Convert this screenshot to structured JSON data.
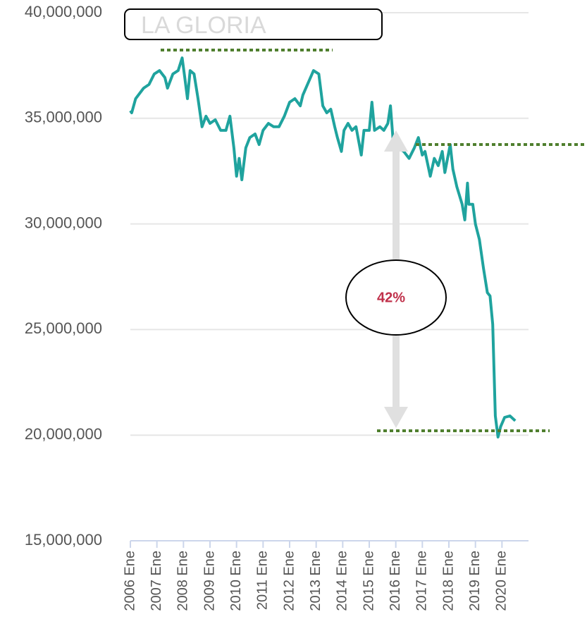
{
  "chart_data": {
    "type": "line",
    "title": "LA GLORIA",
    "annotation": "42%",
    "x": [
      2006.0,
      2006.05,
      2006.2,
      2006.5,
      2006.7,
      2006.9,
      2007.1,
      2007.3,
      2007.4,
      2007.6,
      2007.8,
      2007.95,
      2008.05,
      2008.15,
      2008.25,
      2008.4,
      2008.55,
      2008.7,
      2008.85,
      2009.0,
      2009.2,
      2009.4,
      2009.6,
      2009.75,
      2009.9,
      2010.0,
      2010.1,
      2010.2,
      2010.35,
      2010.5,
      2010.7,
      2010.85,
      2011.0,
      2011.2,
      2011.4,
      2011.6,
      2011.8,
      2012.0,
      2012.2,
      2012.4,
      2012.5,
      2012.75,
      2012.9,
      2013.1,
      2013.25,
      2013.4,
      2013.55,
      2013.7,
      2013.8,
      2013.95,
      2014.05,
      2014.2,
      2014.35,
      2014.5,
      2014.7,
      2014.8,
      2015.0,
      2015.1,
      2015.2,
      2015.4,
      2015.55,
      2015.7,
      2015.8,
      2015.9,
      2016.1,
      2016.3,
      2016.5,
      2016.7,
      2016.85,
      2017.0,
      2017.1,
      2017.3,
      2017.45,
      2017.6,
      2017.75,
      2017.85,
      2017.95,
      2018.05,
      2018.15,
      2018.3,
      2018.5,
      2018.6,
      2018.7,
      2018.75,
      2018.9,
      2019.0,
      2019.15,
      2019.3,
      2019.45,
      2019.55,
      2019.65,
      2019.75,
      2019.85,
      2019.95,
      2020.1,
      2020.3,
      2020.5
    ],
    "series": [
      {
        "color": "#1fa39e",
        "values": [
          35360000,
          35260000,
          35930000,
          36430000,
          36600000,
          37100000,
          37260000,
          36930000,
          36430000,
          37100000,
          37260000,
          37860000,
          36930000,
          35930000,
          37260000,
          37100000,
          35930000,
          34600000,
          35100000,
          34760000,
          34930000,
          34430000,
          34430000,
          35100000,
          33600000,
          32260000,
          33100000,
          32090000,
          33600000,
          34090000,
          34260000,
          33760000,
          34430000,
          34760000,
          34600000,
          34600000,
          35100000,
          35760000,
          35930000,
          35590000,
          36100000,
          36830000,
          37260000,
          37100000,
          35590000,
          35260000,
          35430000,
          34600000,
          34090000,
          33430000,
          34430000,
          34760000,
          34430000,
          34600000,
          33260000,
          34430000,
          34430000,
          35760000,
          34430000,
          34600000,
          34430000,
          34760000,
          35590000,
          33930000,
          33600000,
          33430000,
          33100000,
          33600000,
          34090000,
          33260000,
          33430000,
          32260000,
          33100000,
          32760000,
          33430000,
          32430000,
          33100000,
          33760000,
          32590000,
          31760000,
          30930000,
          30190000,
          31930000,
          30930000,
          30930000,
          29990000,
          29260000,
          27920000,
          26750000,
          26590000,
          25250000,
          20910000,
          19910000,
          20410000,
          20840000,
          20910000,
          20680000
        ]
      }
    ],
    "xlim": [
      2006,
      2021
    ],
    "xticks": [
      {
        "value": 2006,
        "label": "2006 Ene"
      },
      {
        "value": 2007,
        "label": "2007 Ene"
      },
      {
        "value": 2008,
        "label": "2008 Ene"
      },
      {
        "value": 2009,
        "label": "2009 Ene"
      },
      {
        "value": 2010,
        "label": "2010 Ene"
      },
      {
        "value": 2011,
        "label": "2011 Ene"
      },
      {
        "value": 2012,
        "label": "2012 Ene"
      },
      {
        "value": 2013,
        "label": "2013 Ene"
      },
      {
        "value": 2014,
        "label": "2014 Ene"
      },
      {
        "value": 2015,
        "label": "2015 Ene"
      },
      {
        "value": 2016,
        "label": "2016 Ene"
      },
      {
        "value": 2017,
        "label": "2017 Ene"
      },
      {
        "value": 2018,
        "label": "2018 Ene"
      },
      {
        "value": 2019,
        "label": "2019 Ene"
      },
      {
        "value": 2020,
        "label": "2020 Ene"
      }
    ],
    "ylim": [
      15000000,
      40000000
    ],
    "yticks": [
      {
        "value": 15000000,
        "label": "15,000,000"
      },
      {
        "value": 20000000,
        "label": "20,000,000"
      },
      {
        "value": 25000000,
        "label": "25,000,000"
      },
      {
        "value": 30000000,
        "label": "30,000,000"
      },
      {
        "value": 35000000,
        "label": "35,000,000"
      },
      {
        "value": 40000000,
        "label": "40,000,000"
      }
    ],
    "grid": true
  }
}
